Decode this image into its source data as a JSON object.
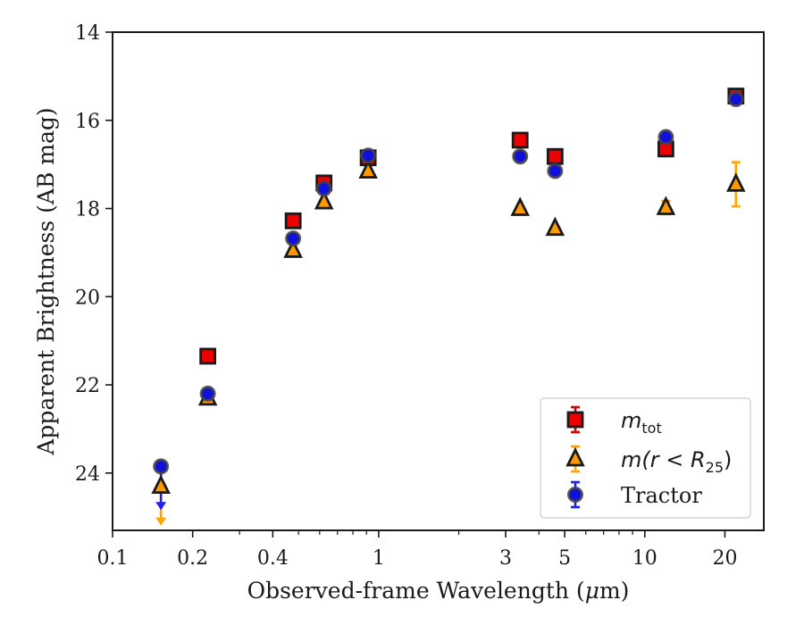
{
  "chart_data": {
    "type": "scatter",
    "xscale": "log",
    "xlim": [
      0.1,
      28
    ],
    "ylim": [
      25.3,
      14
    ],
    "y_inverted": true,
    "xlabel": "Observed-frame Wavelength (μm)",
    "xlabel_parts": {
      "before": "Observed-frame Wavelength (",
      "greek": "μ",
      "after": "m)"
    },
    "ylabel": "Apparent Brightness (AB mag)",
    "xticks": [
      {
        "value": 0.1,
        "label": "0.1"
      },
      {
        "value": 0.2,
        "label": "0.2"
      },
      {
        "value": 0.4,
        "label": "0.4"
      },
      {
        "value": 1,
        "label": "1"
      },
      {
        "value": 3,
        "label": "3"
      },
      {
        "value": 5,
        "label": "5"
      },
      {
        "value": 10,
        "label": "10"
      },
      {
        "value": 20,
        "label": "20"
      }
    ],
    "yticks": [
      {
        "value": 14,
        "label": "14"
      },
      {
        "value": 16,
        "label": "16"
      },
      {
        "value": 18,
        "label": "18"
      },
      {
        "value": 20,
        "label": "20"
      },
      {
        "value": 22,
        "label": "22"
      },
      {
        "value": 24,
        "label": "24"
      }
    ],
    "grid": false,
    "legend_position": "lower-right",
    "series": [
      {
        "name": "m_tot",
        "legend_main": "m",
        "legend_sub": "tot",
        "marker": "square",
        "fill": "#ee0000",
        "edge": "#1a1a1a",
        "errcolor": "#dd0000",
        "points": [
          {
            "x": 0.228,
            "y": 21.35
          },
          {
            "x": 0.477,
            "y": 18.28
          },
          {
            "x": 0.623,
            "y": 17.42
          },
          {
            "x": 0.913,
            "y": 16.85
          },
          {
            "x": 3.4,
            "y": 16.45
          },
          {
            "x": 4.6,
            "y": 16.82
          },
          {
            "x": 12.0,
            "y": 16.65
          },
          {
            "x": 22.0,
            "y": 15.45
          }
        ]
      },
      {
        "name": "m(r < R_25)",
        "legend_main": "m(r < R",
        "legend_sub": "25",
        "legend_tail": ")",
        "marker": "triangle",
        "fill": "#ff9900",
        "edge": "#1a1a1a",
        "errcolor": "#ffa500",
        "points": [
          {
            "x": 0.152,
            "y": 24.3,
            "upper_limit": true,
            "limit_to": 25.15
          },
          {
            "x": 0.228,
            "y": 22.3
          },
          {
            "x": 0.477,
            "y": 18.95
          },
          {
            "x": 0.623,
            "y": 17.85
          },
          {
            "x": 0.913,
            "y": 17.15
          },
          {
            "x": 3.4,
            "y": 18.0
          },
          {
            "x": 4.6,
            "y": 18.45
          },
          {
            "x": 12.0,
            "y": 17.98,
            "err": 0.15
          },
          {
            "x": 22.0,
            "y": 17.45,
            "err": 0.5
          }
        ]
      },
      {
        "name": "Tractor",
        "legend_main": "Tractor",
        "marker": "circle",
        "fill": "#1010dd",
        "edge": "#444444",
        "errcolor": "#2020ee",
        "points": [
          {
            "x": 0.152,
            "y": 23.85,
            "upper_limit": true,
            "limit_to": 24.8
          },
          {
            "x": 0.228,
            "y": 22.2
          },
          {
            "x": 0.477,
            "y": 18.68
          },
          {
            "x": 0.623,
            "y": 17.55
          },
          {
            "x": 0.913,
            "y": 16.8
          },
          {
            "x": 3.4,
            "y": 16.82
          },
          {
            "x": 4.6,
            "y": 17.15
          },
          {
            "x": 12.0,
            "y": 16.38
          },
          {
            "x": 22.0,
            "y": 15.52
          }
        ]
      }
    ]
  }
}
